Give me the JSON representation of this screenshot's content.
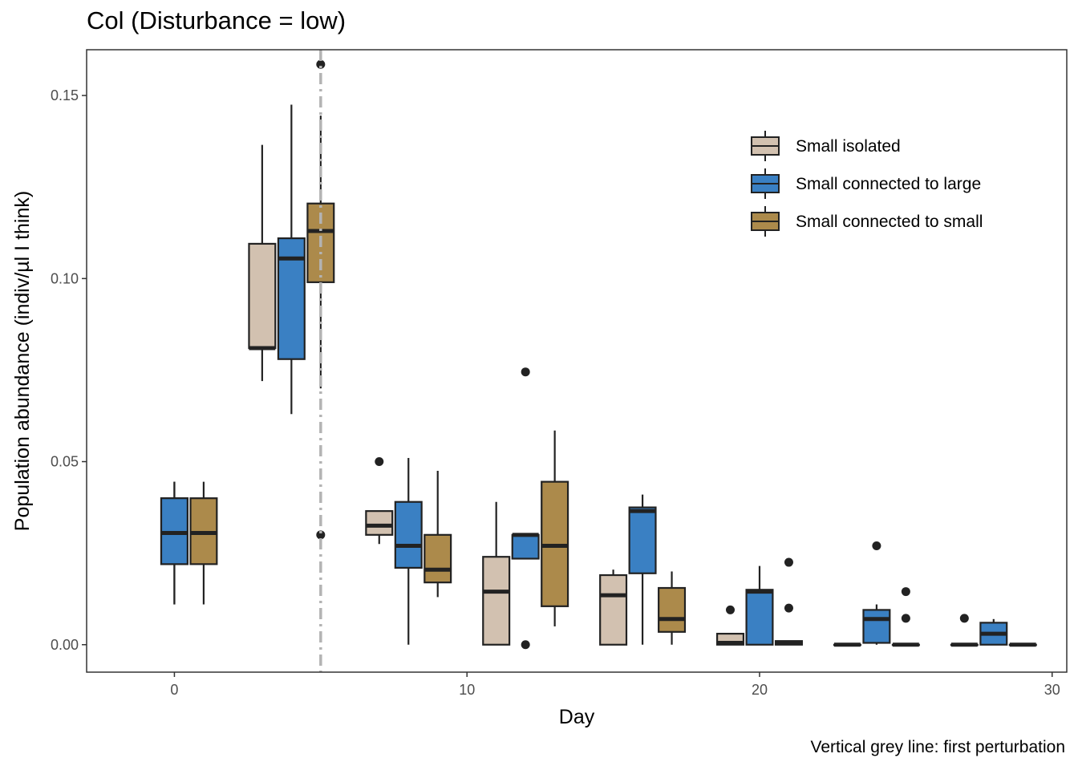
{
  "chart_data": {
    "type": "boxplot",
    "title": "Col (Disturbance = low)",
    "xlabel": "Day",
    "ylabel": "Population abundance (indiv/µl I think)",
    "caption": "Vertical grey line: first perturbation",
    "xlim": [
      -3,
      30.5
    ],
    "ylim": [
      -0.0075,
      0.1625
    ],
    "x_ticks": [
      0,
      10,
      20,
      30
    ],
    "x_tick_labels": [
      "0",
      "10",
      "20",
      "30"
    ],
    "y_ticks": [
      0,
      0.05,
      0.1,
      0.15
    ],
    "y_tick_labels": [
      "0.00",
      "0.05",
      "0.10",
      "0.15"
    ],
    "vline": {
      "x": 5,
      "style": "dash-dot",
      "color": "#b3b3b3",
      "label": "first perturbation"
    },
    "grid": false,
    "legend_position": "top-right",
    "series": [
      {
        "name": "Small isolated",
        "color": "#d2c1b0",
        "boxes": [
          {
            "day": 0,
            "min": 0.011,
            "q1": 0.022,
            "median": 0.0305,
            "q3": 0.04,
            "max": 0.0445,
            "outliers": []
          },
          {
            "day": 3,
            "min": 0.072,
            "q1": 0.081,
            "median": 0.081,
            "q3": 0.1095,
            "max": 0.1365,
            "outliers": []
          },
          {
            "day": 7,
            "min": 0.0275,
            "q1": 0.03,
            "median": 0.0325,
            "q3": 0.0365,
            "max": 0.0365,
            "outliers": [
              0.05
            ]
          },
          {
            "day": 11,
            "min": 0.0,
            "q1": 0.0,
            "median": 0.0145,
            "q3": 0.024,
            "max": 0.039,
            "outliers": []
          },
          {
            "day": 15,
            "min": 0.0,
            "q1": 0.0,
            "median": 0.0135,
            "q3": 0.019,
            "max": 0.0205,
            "outliers": []
          },
          {
            "day": 19,
            "min": 0.0,
            "q1": 0.0,
            "median": 0.0005,
            "q3": 0.003,
            "max": 0.003,
            "outliers": [
              0.0095
            ]
          },
          {
            "day": 23,
            "min": 0.0,
            "q1": 0.0,
            "median": 0.0,
            "q3": 0.0,
            "max": 0.0,
            "outliers": []
          },
          {
            "day": 27,
            "min": 0.0,
            "q1": 0.0,
            "median": 0.0,
            "q3": 0.0,
            "max": 0.0,
            "outliers": [
              0.0072
            ]
          }
        ]
      },
      {
        "name": "Small connected to large",
        "color": "#3a80c3",
        "boxes": [
          {
            "day": 0,
            "min": 0.011,
            "q1": 0.022,
            "median": 0.0305,
            "q3": 0.04,
            "max": 0.0445,
            "outliers": []
          },
          {
            "day": 4,
            "min": 0.063,
            "q1": 0.078,
            "median": 0.1055,
            "q3": 0.111,
            "max": 0.1475,
            "outliers": []
          },
          {
            "day": 8,
            "min": 0.0,
            "q1": 0.021,
            "median": 0.027,
            "q3": 0.039,
            "max": 0.051,
            "outliers": []
          },
          {
            "day": 12,
            "min": 0.0235,
            "q1": 0.0235,
            "median": 0.03,
            "q3": 0.03,
            "max": 0.03,
            "outliers": [
              0.0745,
              0.0
            ]
          },
          {
            "day": 16,
            "min": 0.0,
            "q1": 0.0195,
            "median": 0.0365,
            "q3": 0.0375,
            "max": 0.041,
            "outliers": []
          },
          {
            "day": 20,
            "min": 0.0,
            "q1": 0.0,
            "median": 0.0145,
            "q3": 0.015,
            "max": 0.0215,
            "outliers": []
          },
          {
            "day": 24,
            "min": 0.0,
            "q1": 0.0005,
            "median": 0.007,
            "q3": 0.0095,
            "max": 0.011,
            "outliers": [
              0.027
            ]
          },
          {
            "day": 28,
            "min": 0.0,
            "q1": 0.0,
            "median": 0.003,
            "q3": 0.006,
            "max": 0.007,
            "outliers": []
          }
        ]
      },
      {
        "name": "Small connected to small",
        "color": "#ac8a4b",
        "boxes": [
          {
            "day": 1,
            "min": 0.011,
            "q1": 0.022,
            "median": 0.0305,
            "q3": 0.04,
            "max": 0.0445,
            "outliers": []
          },
          {
            "day": 5,
            "min": 0.07,
            "q1": 0.099,
            "median": 0.113,
            "q3": 0.1205,
            "max": 0.1445,
            "outliers": [
              0.1585,
              0.03
            ]
          },
          {
            "day": 9,
            "min": 0.013,
            "q1": 0.017,
            "median": 0.0205,
            "q3": 0.03,
            "max": 0.0475,
            "outliers": []
          },
          {
            "day": 13,
            "min": 0.005,
            "q1": 0.0105,
            "median": 0.027,
            "q3": 0.0445,
            "max": 0.0585,
            "outliers": []
          },
          {
            "day": 17,
            "min": 0.0,
            "q1": 0.0035,
            "median": 0.007,
            "q3": 0.0155,
            "max": 0.02,
            "outliers": []
          },
          {
            "day": 21,
            "min": 0.0,
            "q1": 0.0,
            "median": 0.0005,
            "q3": 0.001,
            "max": 0.001,
            "outliers": [
              0.0225,
              0.01
            ]
          },
          {
            "day": 25,
            "min": 0.0,
            "q1": 0.0,
            "median": 0.0,
            "q3": 0.0,
            "max": 0.0,
            "outliers": [
              0.0145,
              0.0072
            ]
          },
          {
            "day": 29,
            "min": 0.0,
            "q1": 0.0,
            "median": 0.0,
            "q3": 0.0,
            "max": 0.0,
            "outliers": []
          }
        ]
      }
    ]
  }
}
